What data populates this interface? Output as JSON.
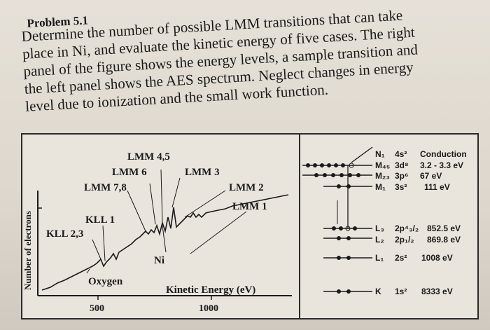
{
  "problem": {
    "title": "Problem 5.1",
    "lines": [
      "Determine the number of possible LMM transitions that can take",
      "place in Ni, and evaluate the kinetic energy of five cases. The right",
      "panel of the figure shows the energy levels, a sample transition and",
      "the left panel shows the AES spectrum. Neglect changes in energy",
      "level due to ionization and the small work function."
    ]
  },
  "spectrum": {
    "y_label": "Number of electrons",
    "x_label": "Kinetic Energy (eV)",
    "x_ticks": [
      "500",
      "1000"
    ],
    "peaks": {
      "lmm45": "LMM 4,5",
      "lmm6": "LMM 6",
      "lmm3": "LMM 3",
      "lmm78": "LMM 7,8",
      "lmm2": "LMM 2",
      "lmm1": "LMM 1",
      "kll1": "KLL 1",
      "kll23": "KLL 2,3",
      "ni": "Ni",
      "oxygen": "Oxygen"
    }
  },
  "levels": {
    "n1": {
      "shell": "N₁",
      "orbital": "4s²",
      "energy": "Conduction"
    },
    "m45": {
      "shell": "M₄₅",
      "orbital": "3d⁸",
      "energy": "3.2 - 3.3 eV"
    },
    "m23": {
      "shell": "M₂₃",
      "orbital": "3p⁶",
      "energy": "67 eV"
    },
    "m1": {
      "shell": "M₁",
      "orbital": "3s²",
      "energy": "111 eV"
    },
    "l3": {
      "shell": "L₃",
      "orbital": "2p⁴₃/₂",
      "energy": "852.5 eV"
    },
    "l2": {
      "shell": "L₂",
      "orbital": "2p₁/₂",
      "energy": "869.8 eV"
    },
    "l1": {
      "shell": "L₁",
      "orbital": "2s²",
      "energy": "1008 eV"
    },
    "k": {
      "shell": "K",
      "orbital": "1s²",
      "energy": "8333 eV"
    }
  }
}
